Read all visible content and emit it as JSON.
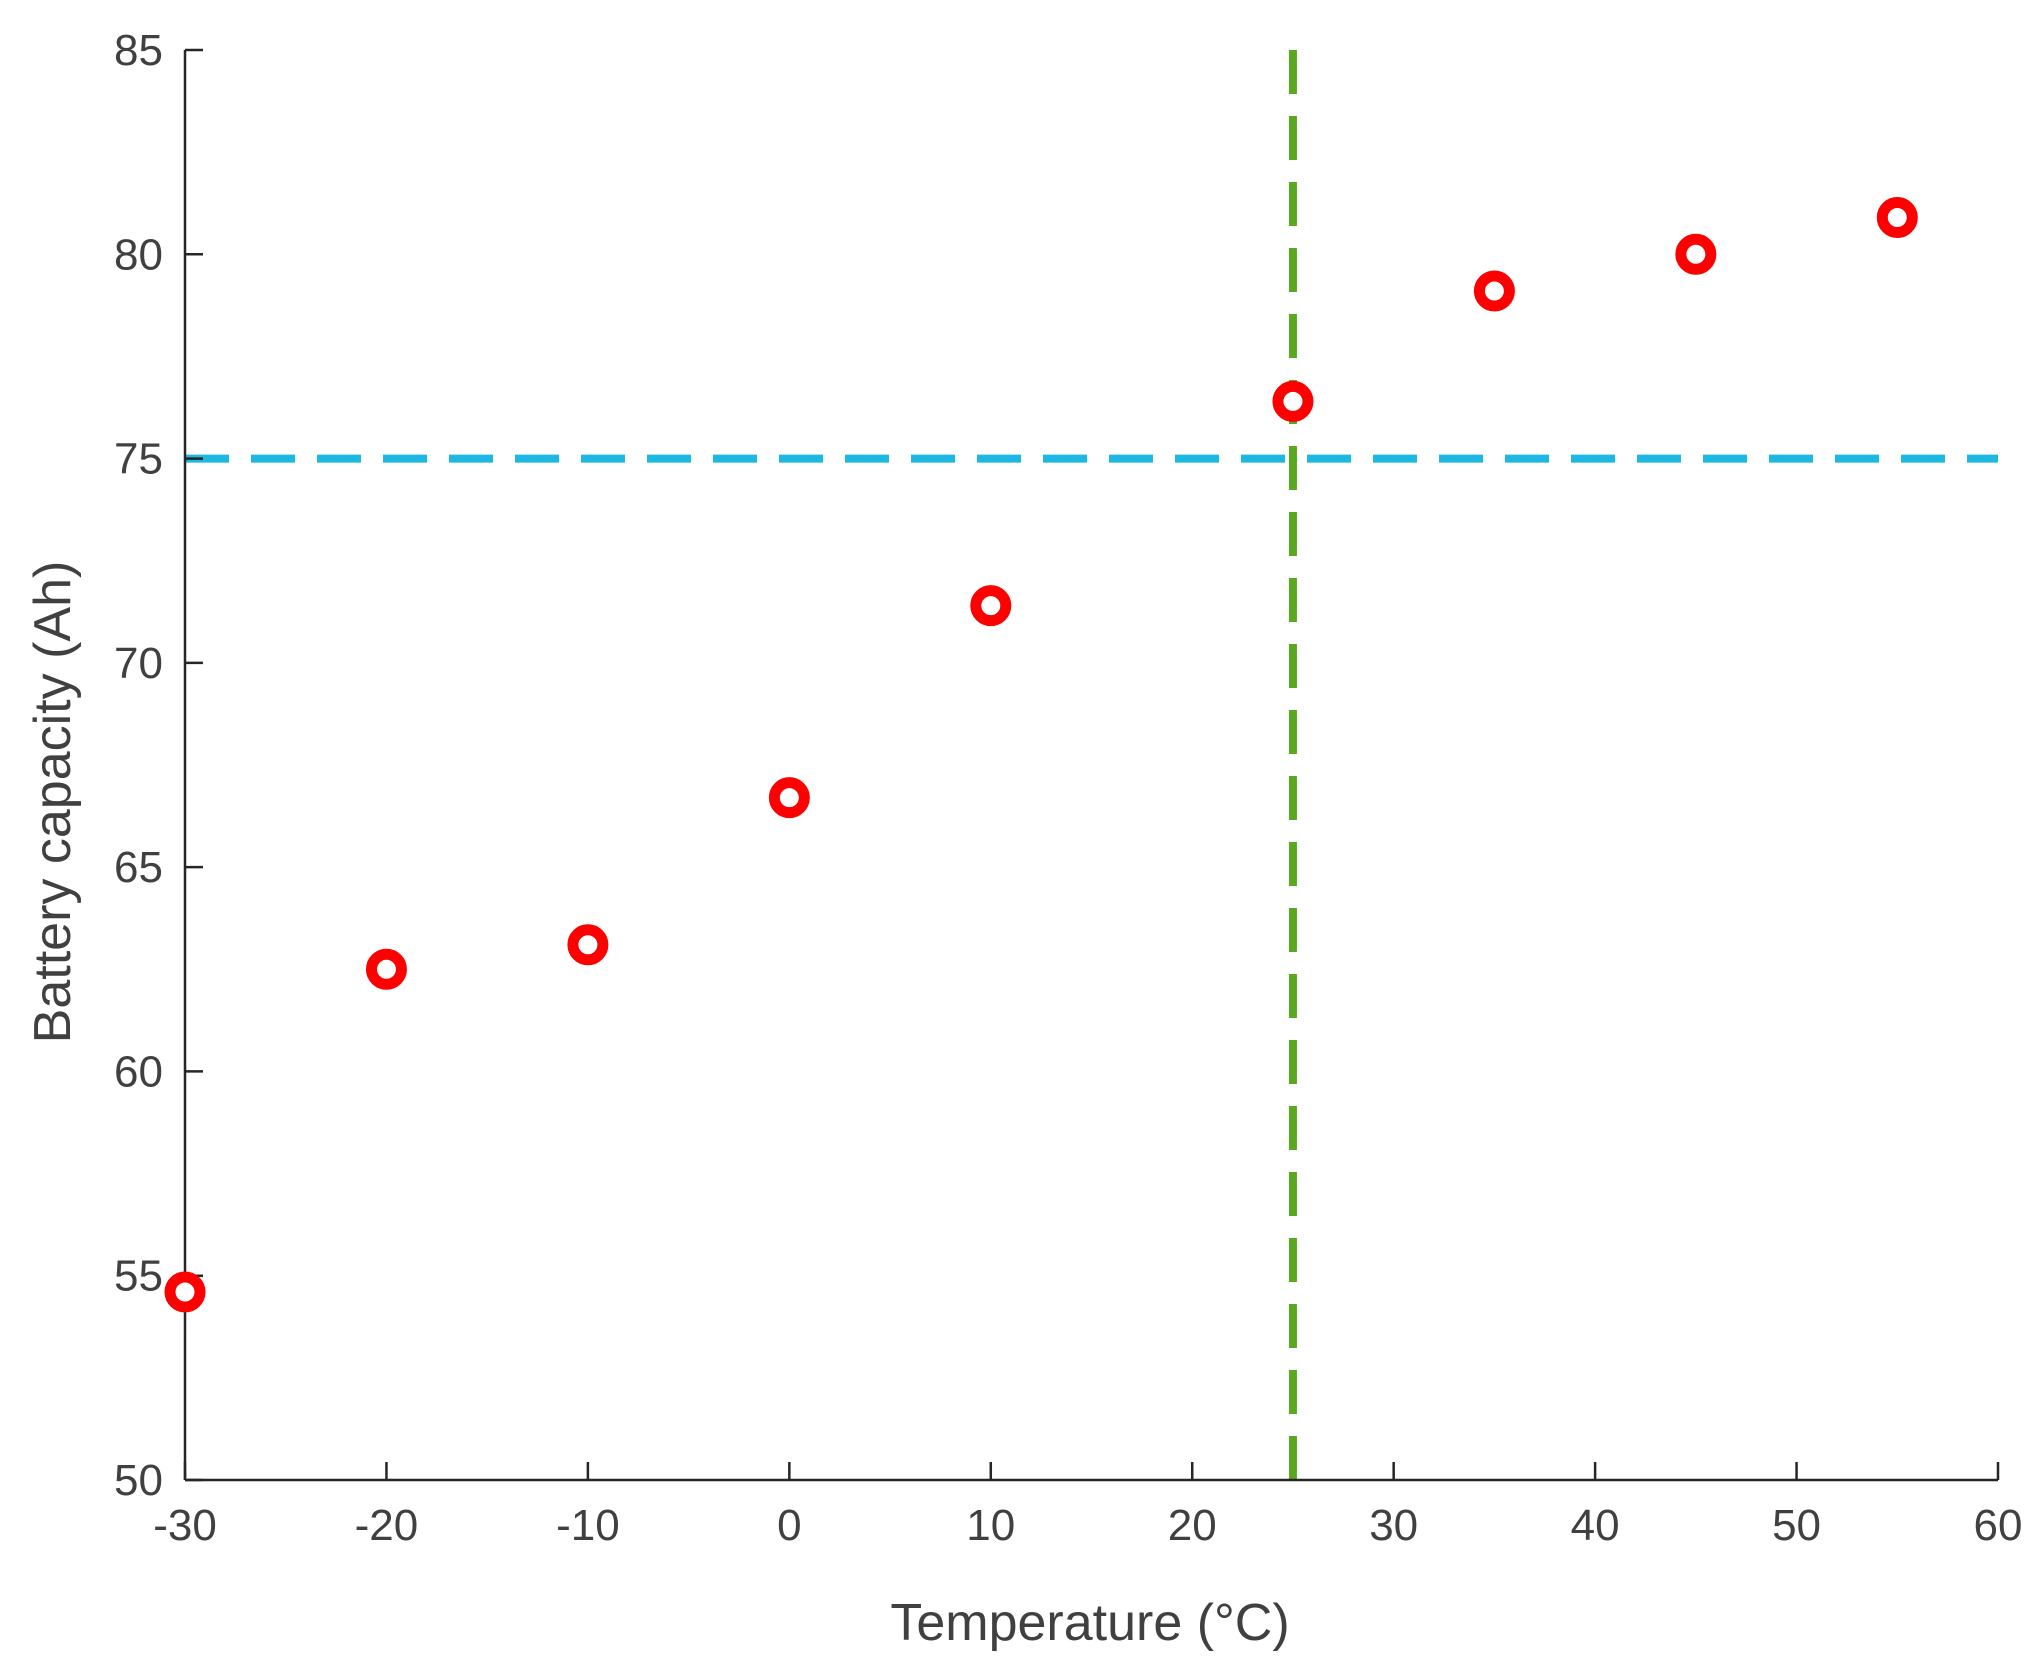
{
  "chart_data": {
    "type": "scatter",
    "xlabel": "Temperature (°C)",
    "ylabel": "Battery capacity (Ah)",
    "xlim": [
      -30,
      60
    ],
    "ylim": [
      50,
      85
    ],
    "xticks": [
      "-30",
      "-20",
      "-10",
      "0",
      "10",
      "20",
      "30",
      "40",
      "50",
      "60"
    ],
    "yticks": [
      "50",
      "55",
      "60",
      "65",
      "70",
      "75",
      "80",
      "85"
    ],
    "grid": false,
    "legend": "none",
    "series": [
      {
        "x": [
          -30,
          -20,
          -10,
          0,
          10,
          25,
          35,
          45,
          55
        ],
        "y": [
          54.6,
          62.5,
          63.1,
          66.7,
          71.4,
          76.4,
          79.1,
          80.0,
          80.9
        ],
        "marker": "circle",
        "color": "#ff0000"
      }
    ],
    "reference_lines": [
      {
        "orientation": "horizontal",
        "y": 75,
        "style": "dashed",
        "color": "#1cb8e0"
      },
      {
        "orientation": "vertical",
        "x": 25,
        "style": "dashed",
        "color": "#5aa820"
      }
    ]
  }
}
